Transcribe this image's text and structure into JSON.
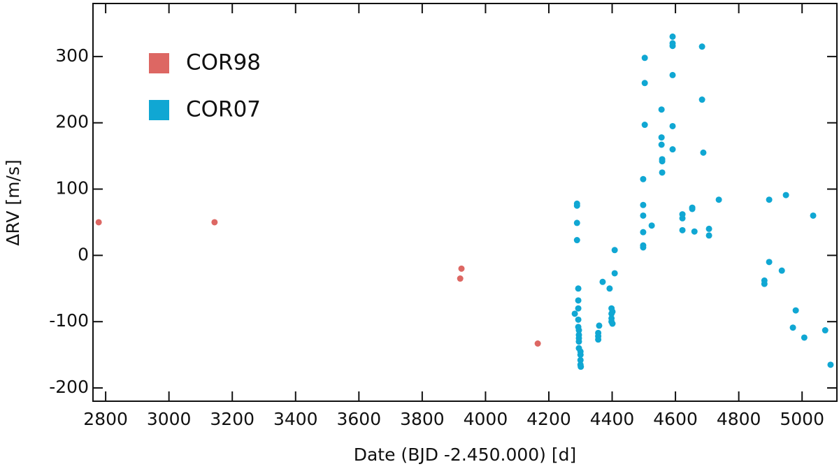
{
  "chart_data": {
    "type": "scatter",
    "xlabel": "Date (BJD -2.450.000) [d]",
    "ylabel": "ΔRV [m/s]",
    "xlim": [
      2760,
      5110
    ],
    "ylim": [
      -220,
      380
    ],
    "xticks": [
      2800,
      3000,
      3200,
      3400,
      3600,
      3800,
      4000,
      4200,
      4400,
      4600,
      4800,
      5000
    ],
    "yticks": [
      -200,
      -100,
      0,
      100,
      200,
      300
    ],
    "legend": "upper left",
    "series": [
      {
        "name": "COR98",
        "color": "#dd6763",
        "x": [
          2778,
          3144,
          3920,
          3924,
          4165
        ],
        "values": [
          50,
          50,
          -35,
          -20,
          -133
        ]
      },
      {
        "name": "COR07",
        "color": "#10a7d3",
        "x": [
          4282,
          4289,
          4289,
          4289,
          4289,
          4293,
          4293,
          4293,
          4293,
          4293,
          4295,
          4295,
          4295,
          4295,
          4295,
          4300,
          4300,
          4300,
          4300,
          4301,
          4356,
          4356,
          4356,
          4359,
          4370,
          4392,
          4398,
          4398,
          4398,
          4398,
          4401,
          4401,
          4408,
          4408,
          4498,
          4498,
          4498,
          4498,
          4498,
          4498,
          4503,
          4503,
          4503,
          4525,
          4556,
          4556,
          4556,
          4558,
          4558,
          4558,
          4591,
          4591,
          4591,
          4591,
          4591,
          4591,
          4622,
          4622,
          4622,
          4653,
          4653,
          4660,
          4684,
          4684,
          4688,
          4706,
          4706,
          4737,
          4881,
          4881,
          4896,
          4896,
          4936,
          4949,
          4971,
          4980,
          5007,
          5035,
          5073,
          5090
        ],
        "values": [
          -88,
          78,
          75,
          49,
          23,
          -50,
          -68,
          -80,
          -97,
          -108,
          -113,
          -120,
          -125,
          -130,
          -140,
          -145,
          -150,
          -158,
          -165,
          -168,
          -117,
          -122,
          -127,
          -106,
          -40,
          -50,
          -80,
          -88,
          -95,
          -100,
          -103,
          -85,
          -27,
          8,
          115,
          76,
          60,
          35,
          15,
          12,
          298,
          260,
          197,
          45,
          220,
          178,
          167,
          145,
          142,
          125,
          330,
          320,
          316,
          272,
          195,
          160,
          62,
          56,
          38,
          72,
          70,
          36,
          315,
          235,
          155,
          40,
          30,
          84,
          -38,
          -43,
          84,
          -10,
          -23,
          91,
          -109,
          -83,
          -124,
          60,
          -113,
          -165
        ]
      }
    ]
  }
}
